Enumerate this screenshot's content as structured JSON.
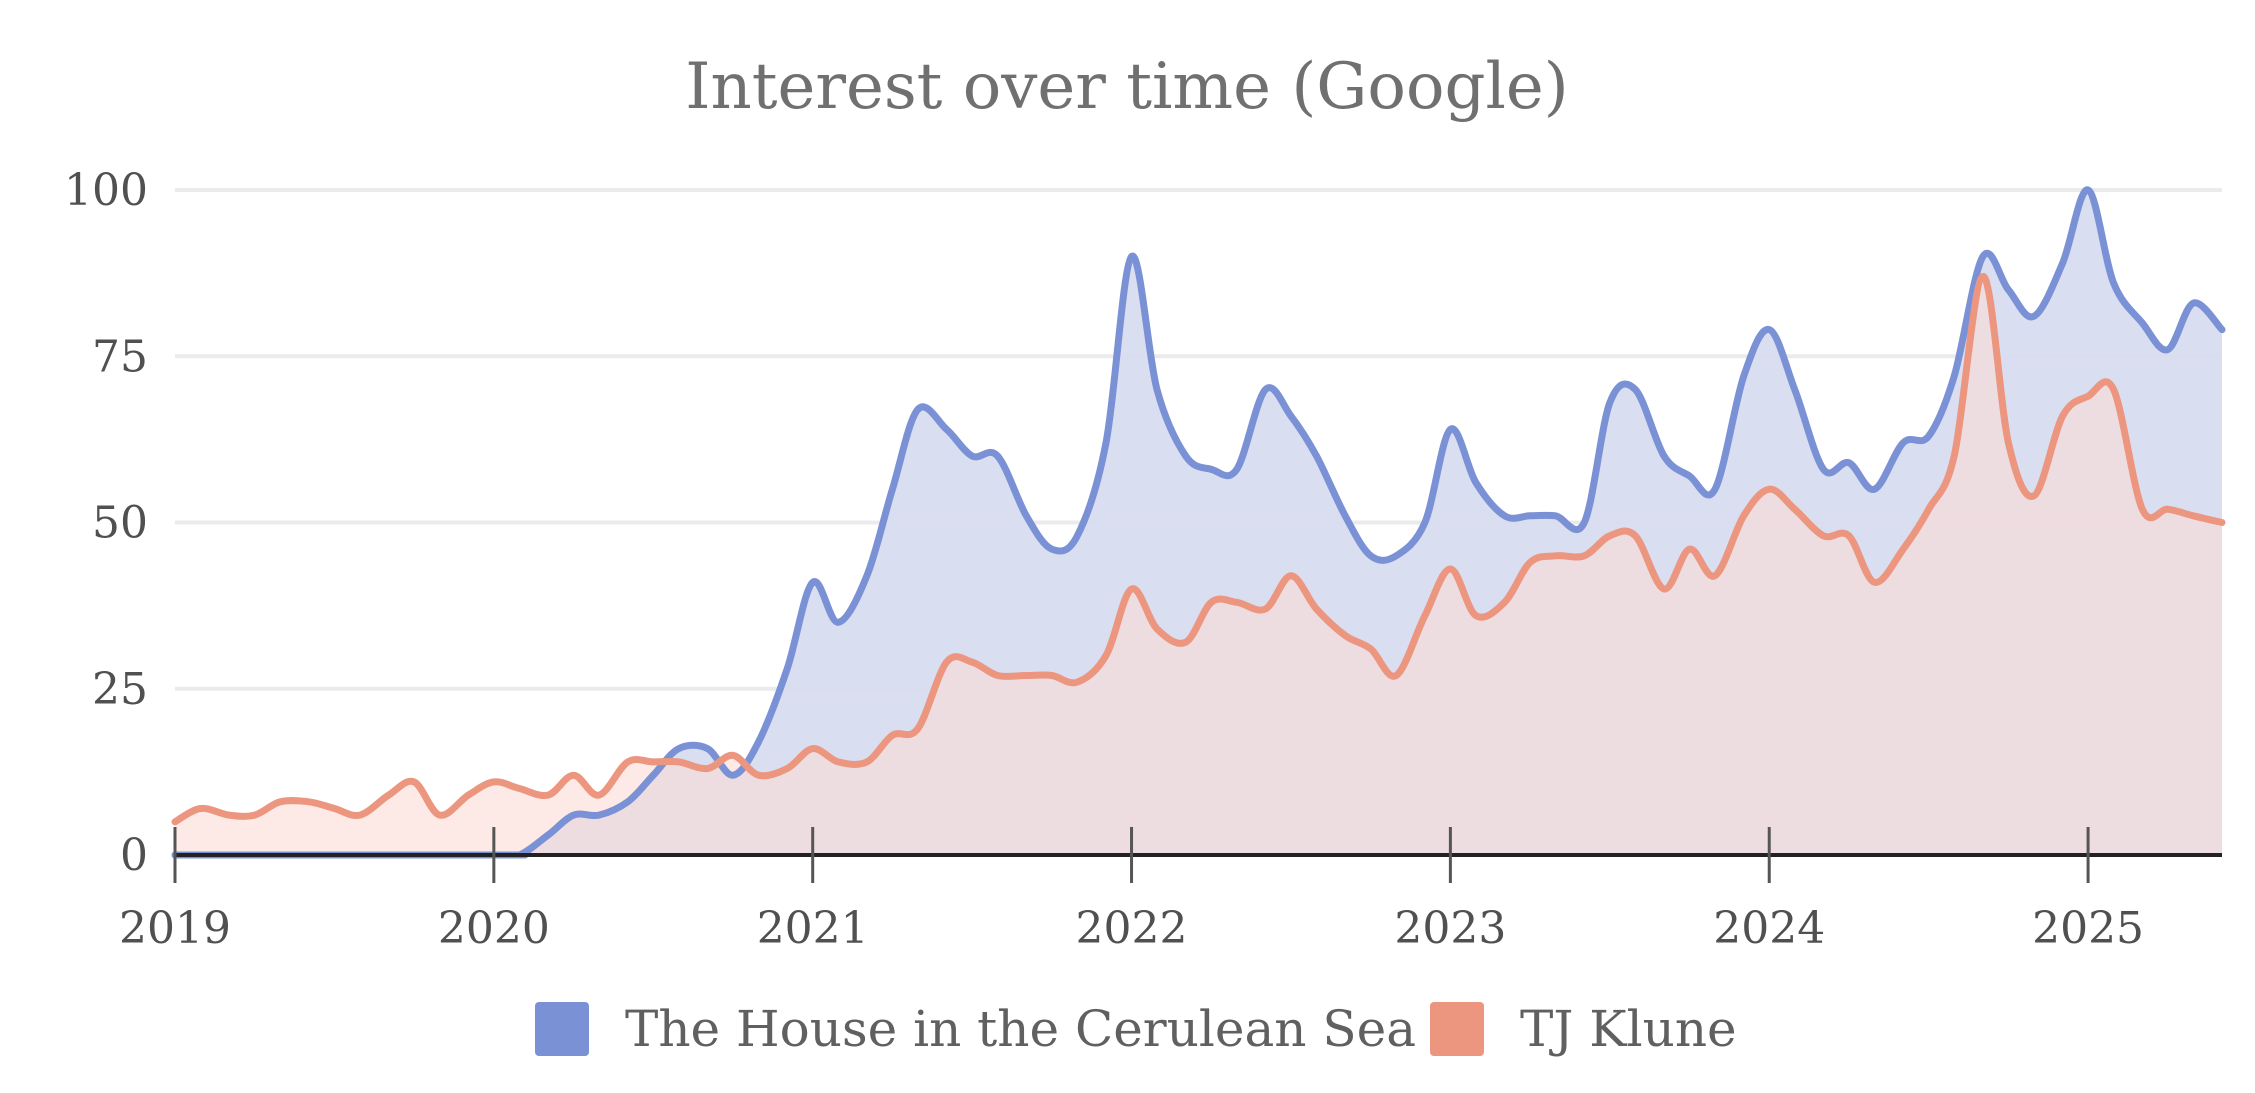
{
  "colors": {
    "series_house": "#7b91d6",
    "series_klune": "#ec9680",
    "fill_house": "#d8dcf0",
    "fill_klune": "#fbdcd6",
    "fill_overlap": "#dac8d0"
  },
  "chart_data": {
    "type": "area",
    "title": "Interest over time (Google)",
    "xlabel": "",
    "ylabel": "",
    "ylim": [
      0,
      100
    ],
    "xlim": [
      2019.0,
      2025.42
    ],
    "y_ticks": [
      "0",
      "25",
      "50",
      "75",
      "100"
    ],
    "x_ticks": [
      "2019",
      "2020",
      "2021",
      "2022",
      "2023",
      "2024",
      "2025"
    ],
    "grid": true,
    "legend_position": "bottom",
    "series": [
      {
        "name": "The House in the Cerulean Sea",
        "color": "#7b91d6",
        "points": [
          [
            2019.0,
            0
          ],
          [
            2020.0,
            0
          ],
          [
            2020.08,
            0
          ],
          [
            2020.17,
            3
          ],
          [
            2020.25,
            6
          ],
          [
            2020.33,
            6
          ],
          [
            2020.42,
            8
          ],
          [
            2020.5,
            12
          ],
          [
            2020.58,
            16
          ],
          [
            2020.67,
            16
          ],
          [
            2020.75,
            12
          ],
          [
            2020.83,
            17
          ],
          [
            2020.92,
            28
          ],
          [
            2021.0,
            41
          ],
          [
            2021.08,
            35
          ],
          [
            2021.17,
            42
          ],
          [
            2021.25,
            55
          ],
          [
            2021.33,
            67
          ],
          [
            2021.42,
            64
          ],
          [
            2021.5,
            60
          ],
          [
            2021.58,
            60
          ],
          [
            2021.67,
            51
          ],
          [
            2021.75,
            46
          ],
          [
            2021.83,
            48
          ],
          [
            2021.92,
            62
          ],
          [
            2022.0,
            90
          ],
          [
            2022.08,
            70
          ],
          [
            2022.17,
            60
          ],
          [
            2022.25,
            58
          ],
          [
            2022.33,
            58
          ],
          [
            2022.42,
            70
          ],
          [
            2022.5,
            66
          ],
          [
            2022.58,
            60
          ],
          [
            2022.67,
            51
          ],
          [
            2022.75,
            45
          ],
          [
            2022.83,
            45
          ],
          [
            2022.92,
            50
          ],
          [
            2023.0,
            64
          ],
          [
            2023.08,
            56
          ],
          [
            2023.17,
            51
          ],
          [
            2023.25,
            51
          ],
          [
            2023.33,
            51
          ],
          [
            2023.42,
            50
          ],
          [
            2023.5,
            68
          ],
          [
            2023.58,
            70
          ],
          [
            2023.67,
            60
          ],
          [
            2023.75,
            57
          ],
          [
            2023.83,
            55
          ],
          [
            2023.92,
            72
          ],
          [
            2024.0,
            79
          ],
          [
            2024.08,
            70
          ],
          [
            2024.17,
            58
          ],
          [
            2024.25,
            59
          ],
          [
            2024.33,
            55
          ],
          [
            2024.42,
            62
          ],
          [
            2024.5,
            63
          ],
          [
            2024.58,
            72
          ],
          [
            2024.67,
            90
          ],
          [
            2024.75,
            85
          ],
          [
            2024.83,
            81
          ],
          [
            2024.92,
            89
          ],
          [
            2025.0,
            100
          ],
          [
            2025.08,
            86
          ],
          [
            2025.17,
            80
          ],
          [
            2025.25,
            76
          ],
          [
            2025.33,
            83
          ],
          [
            2025.42,
            79
          ]
        ]
      },
      {
        "name": "TJ Klune",
        "color": "#ec9680",
        "points": [
          [
            2019.0,
            5
          ],
          [
            2019.08,
            7
          ],
          [
            2019.17,
            6
          ],
          [
            2019.25,
            6
          ],
          [
            2019.33,
            8
          ],
          [
            2019.42,
            8
          ],
          [
            2019.5,
            7
          ],
          [
            2019.58,
            6
          ],
          [
            2019.67,
            9
          ],
          [
            2019.75,
            11
          ],
          [
            2019.83,
            6
          ],
          [
            2019.92,
            9
          ],
          [
            2020.0,
            11
          ],
          [
            2020.08,
            10
          ],
          [
            2020.17,
            9
          ],
          [
            2020.25,
            12
          ],
          [
            2020.33,
            9
          ],
          [
            2020.42,
            14
          ],
          [
            2020.5,
            14
          ],
          [
            2020.58,
            14
          ],
          [
            2020.67,
            13
          ],
          [
            2020.75,
            15
          ],
          [
            2020.83,
            12
          ],
          [
            2020.92,
            13
          ],
          [
            2021.0,
            16
          ],
          [
            2021.08,
            14
          ],
          [
            2021.17,
            14
          ],
          [
            2021.25,
            18
          ],
          [
            2021.33,
            19
          ],
          [
            2021.42,
            29
          ],
          [
            2021.5,
            29
          ],
          [
            2021.58,
            27
          ],
          [
            2021.67,
            27
          ],
          [
            2021.75,
            27
          ],
          [
            2021.83,
            26
          ],
          [
            2021.92,
            30
          ],
          [
            2022.0,
            40
          ],
          [
            2022.08,
            34
          ],
          [
            2022.17,
            32
          ],
          [
            2022.25,
            38
          ],
          [
            2022.33,
            38
          ],
          [
            2022.42,
            37
          ],
          [
            2022.5,
            42
          ],
          [
            2022.58,
            37
          ],
          [
            2022.67,
            33
          ],
          [
            2022.75,
            31
          ],
          [
            2022.83,
            27
          ],
          [
            2022.92,
            36
          ],
          [
            2023.0,
            43
          ],
          [
            2023.08,
            36
          ],
          [
            2023.17,
            38
          ],
          [
            2023.25,
            44
          ],
          [
            2023.33,
            45
          ],
          [
            2023.42,
            45
          ],
          [
            2023.5,
            48
          ],
          [
            2023.58,
            48
          ],
          [
            2023.67,
            40
          ],
          [
            2023.75,
            46
          ],
          [
            2023.83,
            42
          ],
          [
            2023.92,
            51
          ],
          [
            2024.0,
            55
          ],
          [
            2024.08,
            52
          ],
          [
            2024.17,
            48
          ],
          [
            2024.25,
            48
          ],
          [
            2024.33,
            41
          ],
          [
            2024.42,
            46
          ],
          [
            2024.5,
            52
          ],
          [
            2024.58,
            60
          ],
          [
            2024.67,
            87
          ],
          [
            2024.75,
            62
          ],
          [
            2024.83,
            54
          ],
          [
            2024.92,
            66
          ],
          [
            2025.0,
            69
          ],
          [
            2025.08,
            70
          ],
          [
            2025.17,
            52
          ],
          [
            2025.25,
            52
          ],
          [
            2025.33,
            51
          ],
          [
            2025.42,
            50
          ]
        ]
      }
    ]
  }
}
